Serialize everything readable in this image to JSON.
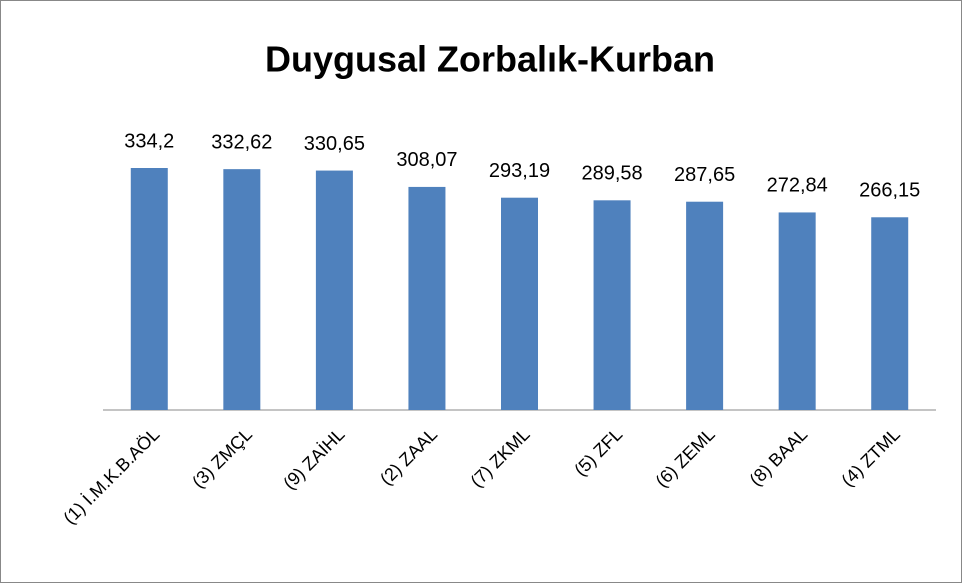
{
  "chart_data": {
    "type": "bar",
    "title": "Duygusal Zorbalık-Kurban",
    "categories": [
      "(1) İ.M.K.B.AÖL",
      "(3) ZMÇL",
      "(9) ZAİHL",
      "(2) ZAAL",
      "(7) ZKML",
      "(5) ZFL",
      "(6) ZEML",
      "(8) BAAL",
      "(4) ZTML"
    ],
    "values": [
      334.2,
      332.62,
      330.65,
      308.07,
      293.19,
      289.58,
      287.65,
      272.84,
      266.15
    ],
    "value_labels": [
      "334,2",
      "332,62",
      "330,65",
      "308,07",
      "293,19",
      "289,58",
      "287,65",
      "272,84",
      "266,15"
    ],
    "color": "#4f81bd"
  }
}
